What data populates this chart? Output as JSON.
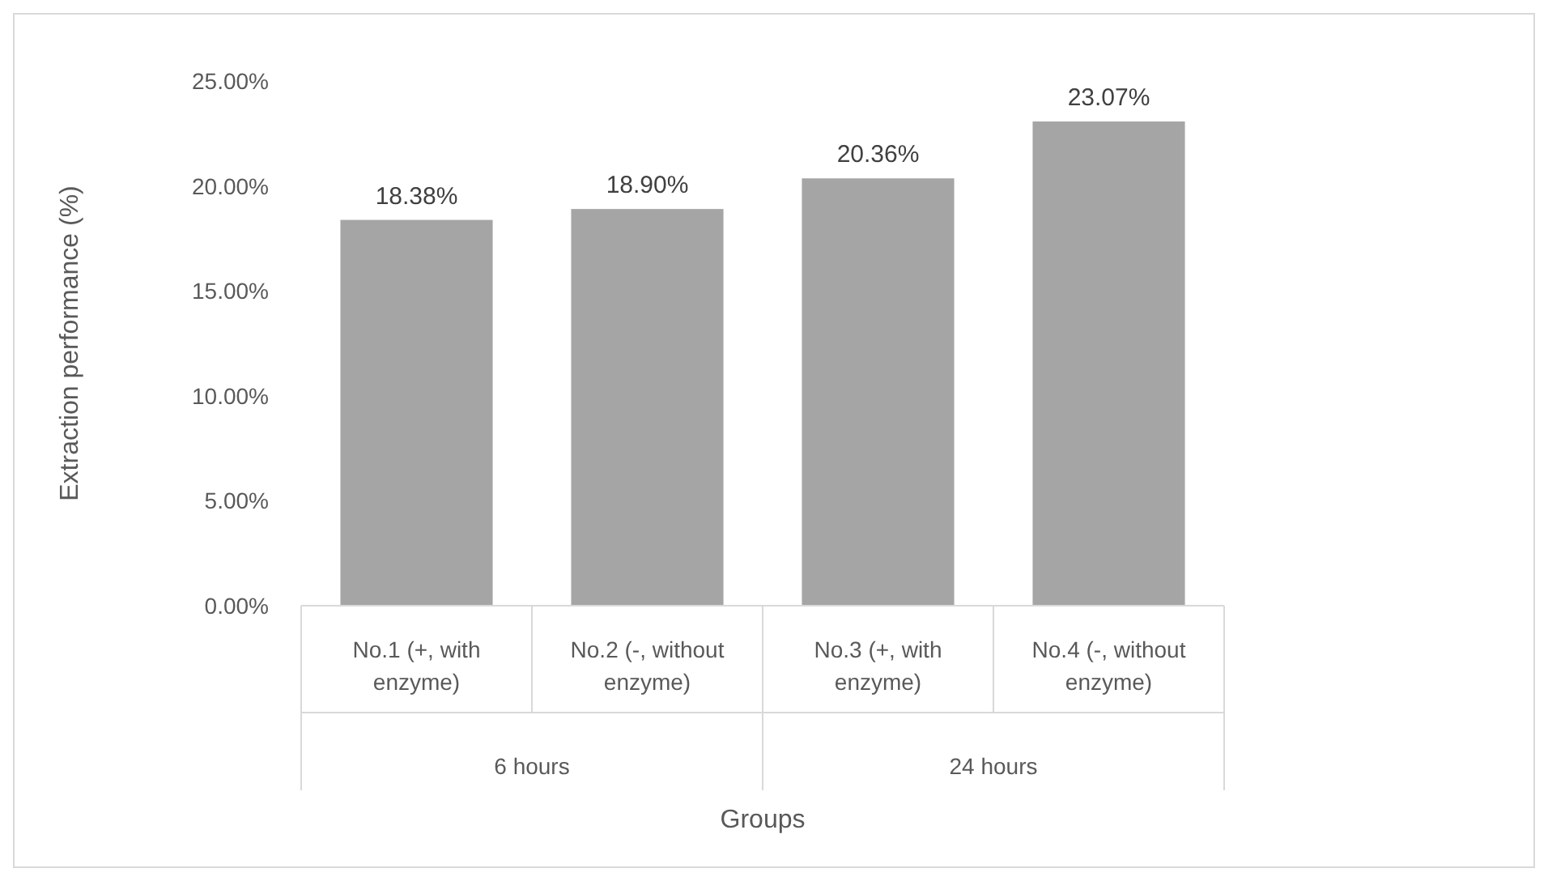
{
  "chart_data": {
    "type": "bar",
    "xlabel": "Groups",
    "ylabel": "Extraction performance (%)",
    "categories": [
      "No.1 (+, with enzyme)",
      "No.2 (-, without enzyme)",
      "No.3 (+, with enzyme)",
      "No.4 (-, without enzyme)"
    ],
    "values": [
      18.38,
      18.9,
      20.36,
      23.07
    ],
    "value_labels": [
      "18.38%",
      "18.90%",
      "20.36%",
      "23.07%"
    ],
    "color": "#a5a5a5",
    "ylim": [
      0,
      25
    ],
    "yticks": [
      {
        "value": 0,
        "label": "0.00%"
      },
      {
        "value": 5,
        "label": "5.00%"
      },
      {
        "value": 10,
        "label": "10.00%"
      },
      {
        "value": 15,
        "label": "15.00%"
      },
      {
        "value": 20,
        "label": "20.00%"
      },
      {
        "value": 25,
        "label": "25.00%"
      }
    ],
    "annotations": [
      "6 hours",
      "24 hours"
    ],
    "grid": false
  }
}
